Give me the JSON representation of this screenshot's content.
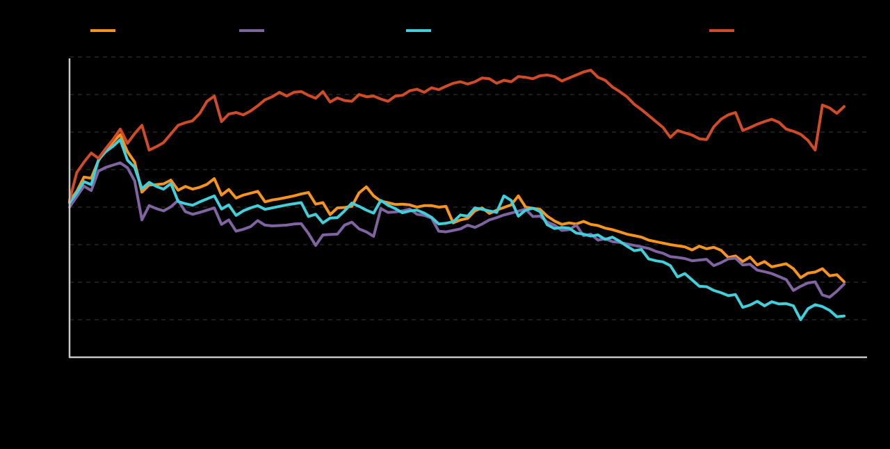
{
  "chart_data": {
    "type": "line",
    "title": "",
    "xlabel": "",
    "ylabel": "",
    "ylim": [
      0,
      8
    ],
    "grid": true,
    "legend_position": "top",
    "series": [
      {
        "color": "#E36C0A",
        "stroke": "#F7941D",
        "y": [
          4.16,
          4.42,
          4.8,
          4.77,
          5.24,
          5.51,
          5.73,
          5.93,
          5.48,
          5.2,
          4.4,
          4.59,
          4.6,
          4.62,
          4.72,
          4.45,
          4.55,
          4.48,
          4.53,
          4.61,
          4.76,
          4.32,
          4.47,
          4.24,
          4.32,
          4.37,
          4.42,
          4.14,
          4.19,
          4.22,
          4.26,
          4.3,
          4.35,
          4.39,
          4.08,
          4.12,
          3.8,
          3.98,
          3.99,
          4.02,
          4.38,
          4.54,
          4.3,
          4.16,
          4.12,
          4.07,
          4.08,
          4.06,
          4.0,
          4.04,
          4.04,
          4.0,
          4.02,
          3.58,
          3.66,
          3.7,
          3.9,
          3.98,
          3.83,
          3.92,
          3.99,
          4.06,
          4.3,
          4.0,
          3.97,
          3.94,
          3.76,
          3.63,
          3.54,
          3.58,
          3.55,
          3.62,
          3.54,
          3.51,
          3.44,
          3.4,
          3.34,
          3.28,
          3.24,
          3.2,
          3.12,
          3.08,
          3.04,
          3.0,
          2.97,
          2.94,
          2.86,
          2.96,
          2.89,
          2.93,
          2.85,
          2.66,
          2.7,
          2.55,
          2.67,
          2.46,
          2.55,
          2.41,
          2.45,
          2.49,
          2.36,
          2.12,
          2.24,
          2.27,
          2.36,
          2.17,
          2.2,
          2.01
        ]
      },
      {
        "color": "#8064A2",
        "stroke": "#8064A2",
        "y": [
          4.0,
          4.28,
          4.56,
          4.44,
          4.96,
          5.06,
          5.12,
          5.18,
          5.05,
          4.7,
          3.66,
          4.04,
          3.96,
          3.9,
          4.01,
          4.18,
          3.88,
          3.81,
          3.86,
          3.92,
          3.98,
          3.54,
          3.66,
          3.36,
          3.41,
          3.48,
          3.64,
          3.52,
          3.5,
          3.51,
          3.52,
          3.55,
          3.56,
          3.3,
          2.98,
          3.26,
          3.27,
          3.28,
          3.52,
          3.6,
          3.42,
          3.34,
          3.22,
          3.96,
          3.86,
          3.87,
          3.9,
          3.95,
          3.81,
          3.78,
          3.71,
          3.36,
          3.34,
          3.38,
          3.42,
          3.52,
          3.46,
          3.55,
          3.66,
          3.72,
          3.79,
          3.84,
          3.89,
          3.95,
          3.75,
          3.76,
          3.6,
          3.52,
          3.38,
          3.4,
          3.52,
          3.24,
          3.28,
          3.12,
          3.16,
          3.08,
          3.06,
          3.02,
          2.98,
          2.94,
          2.9,
          2.82,
          2.77,
          2.68,
          2.66,
          2.63,
          2.57,
          2.59,
          2.61,
          2.44,
          2.52,
          2.62,
          2.64,
          2.46,
          2.48,
          2.32,
          2.28,
          2.23,
          2.15,
          2.07,
          1.78,
          1.89,
          1.98,
          2.01,
          1.66,
          1.6,
          1.76,
          1.95
        ]
      },
      {
        "color": "#4BACC6",
        "stroke": "#3FD0DC",
        "y": [
          4.12,
          4.38,
          4.68,
          4.6,
          5.26,
          5.48,
          5.62,
          5.8,
          5.25,
          5.06,
          4.49,
          4.66,
          4.55,
          4.48,
          4.63,
          4.15,
          4.09,
          4.05,
          4.14,
          4.22,
          4.3,
          3.95,
          4.06,
          3.78,
          3.9,
          3.98,
          4.04,
          3.94,
          3.98,
          4.02,
          4.06,
          4.09,
          4.12,
          3.75,
          3.81,
          3.58,
          3.71,
          3.72,
          3.9,
          4.11,
          4.02,
          3.92,
          3.84,
          4.18,
          4.05,
          3.96,
          3.85,
          3.9,
          3.92,
          3.84,
          3.73,
          3.55,
          3.57,
          3.61,
          3.79,
          3.76,
          3.98,
          3.94,
          3.9,
          3.86,
          4.3,
          4.18,
          3.76,
          3.92,
          3.97,
          3.88,
          3.53,
          3.43,
          3.46,
          3.44,
          3.31,
          3.28,
          3.23,
          3.26,
          3.14,
          3.2,
          3.09,
          2.96,
          2.84,
          2.87,
          2.62,
          2.57,
          2.54,
          2.44,
          2.14,
          2.23,
          2.06,
          1.89,
          1.88,
          1.78,
          1.72,
          1.64,
          1.67,
          1.33,
          1.39,
          1.49,
          1.37,
          1.48,
          1.42,
          1.43,
          1.37,
          1.0,
          1.29,
          1.4,
          1.35,
          1.25,
          1.08,
          1.1
        ]
      },
      {
        "color": "#C0504D",
        "stroke": "#D24B27",
        "y": [
          4.18,
          4.92,
          5.2,
          5.44,
          5.3,
          5.56,
          5.8,
          6.08,
          5.7,
          5.96,
          6.18,
          5.52,
          5.61,
          5.72,
          5.95,
          6.18,
          6.25,
          6.3,
          6.5,
          6.82,
          6.96,
          6.28,
          6.48,
          6.52,
          6.46,
          6.56,
          6.7,
          6.86,
          6.94,
          7.06,
          6.96,
          7.06,
          7.08,
          6.98,
          6.9,
          7.08,
          6.8,
          6.91,
          6.84,
          6.82,
          7.0,
          6.94,
          6.96,
          6.88,
          6.82,
          6.96,
          6.98,
          7.1,
          7.14,
          7.06,
          7.18,
          7.13,
          7.22,
          7.3,
          7.34,
          7.28,
          7.34,
          7.44,
          7.42,
          7.3,
          7.38,
          7.34,
          7.48,
          7.46,
          7.42,
          7.5,
          7.52,
          7.48,
          7.36,
          7.44,
          7.52,
          7.6,
          7.65,
          7.46,
          7.38,
          7.2,
          7.08,
          6.94,
          6.74,
          6.6,
          6.44,
          6.28,
          6.12,
          5.86,
          6.04,
          5.98,
          5.92,
          5.82,
          5.8,
          6.14,
          6.34,
          6.46,
          6.52,
          6.04,
          6.12,
          6.21,
          6.28,
          6.34,
          6.26,
          6.08,
          6.02,
          5.94,
          5.78,
          5.52,
          6.72,
          6.64,
          6.5,
          6.68
        ]
      }
    ]
  }
}
